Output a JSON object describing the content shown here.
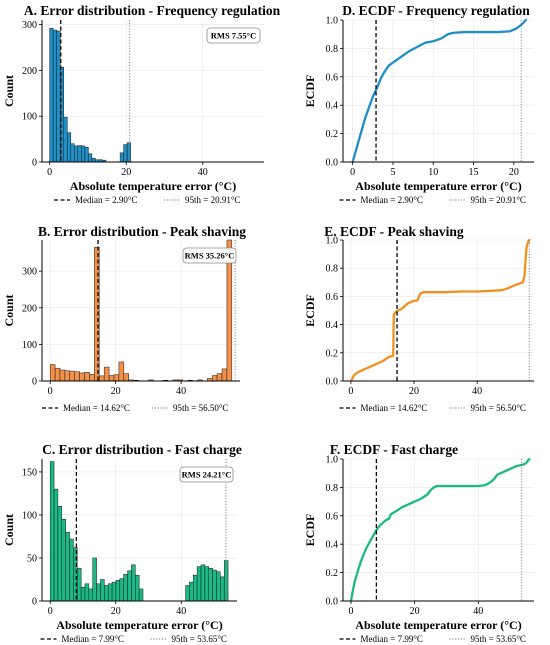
{
  "chart_data": [
    {
      "id": "A",
      "type": "bar",
      "title": "A. Error distribution - Frequency regulation",
      "xlabel": "Absolute temperature error (°C)",
      "ylabel": "Count",
      "xlim": [
        -2,
        56
      ],
      "ylim": [
        0,
        310
      ],
      "xticks": [
        0,
        20,
        40
      ],
      "yticks": [
        0,
        100,
        200,
        300
      ],
      "color": "#1f8fc6",
      "binwidth": 0.92,
      "grid": true,
      "bins": [
        {
          "x": 0.0,
          "v": 292
        },
        {
          "x": 0.92,
          "v": 288
        },
        {
          "x": 1.84,
          "v": 286
        },
        {
          "x": 2.76,
          "v": 207
        },
        {
          "x": 3.68,
          "v": 98
        },
        {
          "x": 4.6,
          "v": 64
        },
        {
          "x": 5.52,
          "v": 40
        },
        {
          "x": 6.44,
          "v": 35
        },
        {
          "x": 7.36,
          "v": 36
        },
        {
          "x": 8.28,
          "v": 35
        },
        {
          "x": 9.2,
          "v": 32
        },
        {
          "x": 10.12,
          "v": 18
        },
        {
          "x": 11.04,
          "v": 8
        },
        {
          "x": 11.96,
          "v": 5
        },
        {
          "x": 12.88,
          "v": 5
        },
        {
          "x": 13.8,
          "v": 4
        },
        {
          "x": 18.4,
          "v": 20
        },
        {
          "x": 19.32,
          "v": 38
        },
        {
          "x": 20.24,
          "v": 42
        }
      ],
      "median": 2.9,
      "p95": 20.91,
      "legend": {
        "median": "Median = 2.90°C",
        "p95": "95th = 20.91°C"
      },
      "annotation": "RMS 7.55°C"
    },
    {
      "id": "D",
      "type": "line",
      "title": "D. ECDF - Frequency regulation",
      "xlabel": "Absolute temperature error (°C)",
      "ylabel": "ECDF",
      "xlim": [
        -1.2,
        22.5
      ],
      "ylim": [
        0,
        1.0
      ],
      "xticks": [
        0,
        5,
        10,
        15,
        20
      ],
      "yticks": [
        0.0,
        0.2,
        0.4,
        0.6,
        0.8,
        1.0
      ],
      "color": "#1f8fc6",
      "grid": true,
      "x": [
        0,
        0.5,
        1,
        1.5,
        2,
        2.5,
        3,
        3.5,
        4,
        4.5,
        5,
        6,
        7,
        8,
        9,
        10,
        11,
        11.8,
        12.5,
        14,
        16,
        18,
        19.5,
        20.3,
        21,
        21.5
      ],
      "y": [
        0.0,
        0.1,
        0.2,
        0.3,
        0.38,
        0.46,
        0.52,
        0.59,
        0.64,
        0.68,
        0.7,
        0.74,
        0.78,
        0.81,
        0.84,
        0.85,
        0.87,
        0.9,
        0.91,
        0.915,
        0.915,
        0.915,
        0.92,
        0.94,
        0.97,
        1.0
      ],
      "median": 2.9,
      "p95": 20.91,
      "legend": {
        "median": "Median = 2.90°C",
        "p95": "95th = 20.91°C"
      }
    },
    {
      "id": "B",
      "type": "bar",
      "title": "B. Error distribution - Peak shaving",
      "xlabel": "",
      "ylabel": "Count",
      "xlim": [
        -2.5,
        58
      ],
      "ylim": [
        0,
        385
      ],
      "xticks": [
        0,
        20,
        40
      ],
      "yticks": [
        0,
        100,
        200,
        300
      ],
      "color": "#f2914a",
      "binwidth": 1.5,
      "grid": true,
      "bins": [
        {
          "x": 0.0,
          "v": 45
        },
        {
          "x": 1.5,
          "v": 35
        },
        {
          "x": 3.0,
          "v": 30
        },
        {
          "x": 4.5,
          "v": 28
        },
        {
          "x": 6.0,
          "v": 27
        },
        {
          "x": 7.5,
          "v": 25
        },
        {
          "x": 9.0,
          "v": 22
        },
        {
          "x": 10.5,
          "v": 24
        },
        {
          "x": 12.0,
          "v": 18
        },
        {
          "x": 13.5,
          "v": 365
        },
        {
          "x": 15.0,
          "v": 14
        },
        {
          "x": 16.5,
          "v": 38
        },
        {
          "x": 18.0,
          "v": 15
        },
        {
          "x": 19.5,
          "v": 17
        },
        {
          "x": 21.0,
          "v": 52
        },
        {
          "x": 22.5,
          "v": 20
        },
        {
          "x": 24.0,
          "v": 3
        },
        {
          "x": 25.5,
          "v": 2
        },
        {
          "x": 30.0,
          "v": 3
        },
        {
          "x": 34.5,
          "v": 2
        },
        {
          "x": 37.5,
          "v": 3
        },
        {
          "x": 39.0,
          "v": 3
        },
        {
          "x": 42.0,
          "v": 2
        },
        {
          "x": 45.0,
          "v": 3
        },
        {
          "x": 48.0,
          "v": 7
        },
        {
          "x": 49.5,
          "v": 15
        },
        {
          "x": 51.0,
          "v": 20
        },
        {
          "x": 52.5,
          "v": 33
        },
        {
          "x": 54.0,
          "v": 385
        }
      ],
      "median": 14.62,
      "p95": 56.5,
      "legend": {
        "median": "Median = 14.62°C",
        "p95": "95th = 56.50°C"
      },
      "annotation": "RMS 35.26°C"
    },
    {
      "id": "E",
      "type": "line",
      "title": "E. ECDF - Peak shaving",
      "xlabel": "",
      "ylabel": "ECDF",
      "xlim": [
        -2.5,
        58
      ],
      "ylim": [
        0,
        1.0
      ],
      "xticks": [
        0,
        20,
        40
      ],
      "yticks": [
        0.0,
        0.2,
        0.4,
        0.6,
        0.8,
        1.0
      ],
      "color": "#f2911f",
      "grid": true,
      "x": [
        0,
        1,
        2,
        4,
        6,
        8,
        10,
        12,
        13.4,
        13.6,
        14.2,
        15,
        16,
        17,
        18,
        19,
        20,
        21,
        22,
        23,
        25,
        30,
        35,
        40,
        45,
        48,
        50,
        52,
        54.5,
        55,
        55.3,
        55.6,
        56,
        56.5
      ],
      "y": [
        0.0,
        0.04,
        0.06,
        0.08,
        0.1,
        0.12,
        0.14,
        0.17,
        0.18,
        0.47,
        0.49,
        0.5,
        0.51,
        0.53,
        0.55,
        0.56,
        0.57,
        0.57,
        0.62,
        0.63,
        0.63,
        0.63,
        0.635,
        0.635,
        0.64,
        0.645,
        0.66,
        0.68,
        0.7,
        0.75,
        0.85,
        0.94,
        0.98,
        1.0
      ],
      "median": 14.62,
      "p95": 56.5,
      "legend": {
        "median": "Median = 14.62°C",
        "p95": "95th = 56.50°C"
      }
    },
    {
      "id": "C",
      "type": "bar",
      "title": "C. Error distribution - Fast charge",
      "xlabel": "Absolute temperature error (°C)",
      "ylabel": "Count",
      "xlim": [
        -2.5,
        57
      ],
      "ylim": [
        0,
        165
      ],
      "xticks": [
        0,
        20,
        40
      ],
      "yticks": [
        0,
        50,
        100,
        150
      ],
      "color": "#1bb985",
      "binwidth": 1.18,
      "grid": true,
      "bins": [
        {
          "x": 0.0,
          "v": 162
        },
        {
          "x": 1.18,
          "v": 130
        },
        {
          "x": 2.36,
          "v": 110
        },
        {
          "x": 3.54,
          "v": 95
        },
        {
          "x": 4.72,
          "v": 80
        },
        {
          "x": 5.9,
          "v": 72
        },
        {
          "x": 7.08,
          "v": 62
        },
        {
          "x": 8.26,
          "v": 38
        },
        {
          "x": 9.44,
          "v": 16
        },
        {
          "x": 10.62,
          "v": 20
        },
        {
          "x": 11.8,
          "v": 14
        },
        {
          "x": 12.98,
          "v": 50
        },
        {
          "x": 14.16,
          "v": 20
        },
        {
          "x": 15.34,
          "v": 25
        },
        {
          "x": 16.52,
          "v": 18
        },
        {
          "x": 17.7,
          "v": 20
        },
        {
          "x": 18.88,
          "v": 22
        },
        {
          "x": 20.06,
          "v": 24
        },
        {
          "x": 21.24,
          "v": 26
        },
        {
          "x": 22.42,
          "v": 31
        },
        {
          "x": 23.6,
          "v": 35
        },
        {
          "x": 24.78,
          "v": 42
        },
        {
          "x": 25.96,
          "v": 30
        },
        {
          "x": 27.14,
          "v": 14
        },
        {
          "x": 41.3,
          "v": 18
        },
        {
          "x": 42.48,
          "v": 22
        },
        {
          "x": 43.66,
          "v": 30
        },
        {
          "x": 44.84,
          "v": 40
        },
        {
          "x": 46.02,
          "v": 42
        },
        {
          "x": 47.2,
          "v": 40
        },
        {
          "x": 48.38,
          "v": 38
        },
        {
          "x": 49.56,
          "v": 36
        },
        {
          "x": 50.74,
          "v": 34
        },
        {
          "x": 51.92,
          "v": 28
        },
        {
          "x": 53.1,
          "v": 47
        }
      ],
      "median": 7.99,
      "p95": 53.65,
      "legend": {
        "median": "Median = 7.99°C",
        "p95": "95th = 53.65°C"
      },
      "annotation": "RMS 24.21°C"
    },
    {
      "id": "F",
      "type": "line",
      "title": "F. ECDF - Fast charge",
      "xlabel": "Absolute temperature error (°C)",
      "ylabel": "ECDF",
      "xlim": [
        -2.5,
        57.5
      ],
      "ylim": [
        0,
        1.0
      ],
      "xticks": [
        0,
        20,
        40
      ],
      "yticks": [
        0.0,
        0.2,
        0.4,
        0.6,
        0.8,
        1.0
      ],
      "color": "#1bb985",
      "grid": true,
      "x": [
        0,
        1,
        2,
        3,
        4,
        5,
        6,
        7,
        8,
        9,
        10,
        11,
        12,
        12.5,
        14,
        16,
        18,
        20,
        22,
        24,
        25,
        26,
        27,
        30,
        35,
        40,
        42,
        43,
        44,
        45,
        46,
        48,
        50,
        52,
        54,
        55,
        56
      ],
      "y": [
        0.0,
        0.12,
        0.2,
        0.27,
        0.33,
        0.38,
        0.42,
        0.46,
        0.5,
        0.53,
        0.55,
        0.57,
        0.58,
        0.61,
        0.63,
        0.66,
        0.68,
        0.7,
        0.72,
        0.75,
        0.78,
        0.8,
        0.81,
        0.81,
        0.81,
        0.81,
        0.815,
        0.825,
        0.84,
        0.86,
        0.89,
        0.91,
        0.93,
        0.95,
        0.96,
        0.97,
        1.0
      ],
      "median": 7.99,
      "p95": 53.65,
      "legend": {
        "median": "Median = 7.99°C",
        "p95": "95th = 53.65°C"
      }
    }
  ]
}
